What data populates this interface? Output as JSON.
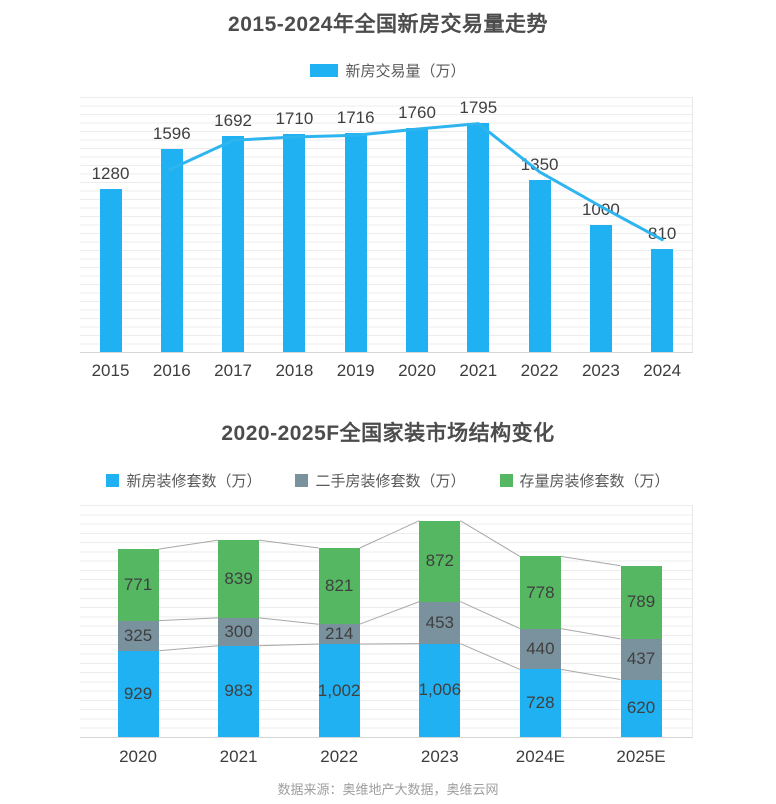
{
  "page": {
    "source_note": "数据来源：奥维地产大数据，奥维云网"
  },
  "colors": {
    "bar_blue": "#1fb1f1",
    "line_blue": "#2eb5f0",
    "secondhand_gray": "#7a929e",
    "stock_green": "#55b761",
    "gridline": "#ececec",
    "axis_line": "#d7d7d7",
    "connector_gray": "#a8a8a8",
    "label_text": "#3f3f3f",
    "title_text": "#4c4c4c",
    "footer_text": "#9e9e9e"
  },
  "chart_data": [
    {
      "type": "bar",
      "title": "2015-2024年全国新房交易量走势",
      "legend": [
        {
          "label": "新房交易量（万）",
          "color": "#1fb1f1"
        }
      ],
      "categories": [
        "2015",
        "2016",
        "2017",
        "2018",
        "2019",
        "2020",
        "2021",
        "2022",
        "2023",
        "2024"
      ],
      "values": [
        1280,
        1596,
        1692,
        1710,
        1716,
        1760,
        1795,
        1350,
        1000,
        810
      ],
      "labels": [
        "1280",
        "1596",
        "1692",
        "1710",
        "1716",
        "1760",
        "1795",
        "1350",
        "1000",
        "810"
      ],
      "overlay_line": true,
      "xlabel": "",
      "ylabel": "",
      "ylim": [
        0,
        2000
      ],
      "grid": true,
      "legend_position": "top"
    },
    {
      "type": "bar",
      "subtype": "stacked",
      "title": "2020-2025F全国家装市场结构变化",
      "categories": [
        "2020",
        "2021",
        "2022",
        "2023",
        "2024E",
        "2025E"
      ],
      "series": [
        {
          "name": "新房装修套数（万）",
          "color": "#1fb1f1",
          "values": [
            929,
            983,
            1002,
            1006,
            728,
            620
          ],
          "labels": [
            "929",
            "983",
            "1,002",
            "1,006",
            "728",
            "620"
          ]
        },
        {
          "name": "二手房装修套数（万）",
          "color": "#7a929e",
          "values": [
            325,
            300,
            214,
            453,
            440,
            437
          ],
          "labels": [
            "325",
            "300",
            "214",
            "453",
            "440",
            "437"
          ]
        },
        {
          "name": "存量房装修套数（万）",
          "color": "#55b761",
          "values": [
            771,
            839,
            821,
            872,
            778,
            789
          ],
          "labels": [
            "771",
            "839",
            "821",
            "872",
            "778",
            "789"
          ]
        }
      ],
      "connector_lines": true,
      "xlabel": "",
      "ylabel": "",
      "ylim": [
        0,
        2500
      ],
      "grid": true,
      "legend_position": "top"
    }
  ]
}
